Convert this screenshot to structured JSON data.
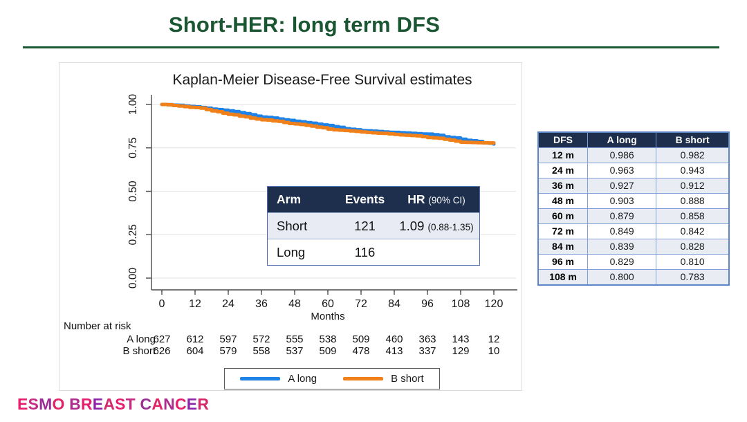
{
  "slide": {
    "title": "Short-HER: long term DFS",
    "logo_text": "ESMO BREAST CANCER",
    "accent_green": "#1a5632",
    "logo_palette": [
      "#e61e6e",
      "#c62a83",
      "#9a2e96",
      "#e02468",
      "#ad2c8e",
      "#e61e6e",
      "#8e24aa",
      "#d42a6b"
    ]
  },
  "chart_data": {
    "type": "line",
    "subtype": "kaplan-meier-step",
    "title": "Kaplan-Meier Disease-Free Survival estimates",
    "xlabel": "Months",
    "x_ticks": [
      0,
      12,
      24,
      36,
      48,
      60,
      72,
      84,
      96,
      108,
      120
    ],
    "y_tick_values": [
      0,
      0.25,
      0.5,
      0.75,
      1
    ],
    "y_tick_labels": [
      "0.00",
      "0.25",
      "0.50",
      "0.75",
      "1.00"
    ],
    "xlim": [
      0,
      120
    ],
    "ylim": [
      0,
      1
    ],
    "grid": "horizontal",
    "legend_position": "bottom",
    "series": [
      {
        "name": "A long",
        "color": "#1e82e6",
        "x": [
          0,
          12,
          24,
          36,
          48,
          60,
          72,
          84,
          96,
          108,
          120
        ],
        "values": [
          1.0,
          0.986,
          0.963,
          0.927,
          0.903,
          0.879,
          0.849,
          0.839,
          0.829,
          0.8,
          0.772
        ]
      },
      {
        "name": "B short",
        "color": "#f0801a",
        "x": [
          0,
          12,
          24,
          36,
          48,
          60,
          72,
          84,
          96,
          108,
          120
        ],
        "values": [
          1.0,
          0.982,
          0.943,
          0.912,
          0.888,
          0.858,
          0.842,
          0.828,
          0.81,
          0.783,
          0.778
        ]
      }
    ],
    "number_at_risk": {
      "title": "Number at risk",
      "rows": [
        {
          "label": "A long",
          "values": [
            627,
            612,
            597,
            572,
            555,
            538,
            509,
            460,
            363,
            143,
            12
          ]
        },
        {
          "label": "B short",
          "values": [
            626,
            604,
            579,
            558,
            537,
            509,
            478,
            413,
            337,
            129,
            10
          ]
        }
      ]
    }
  },
  "inset_table": {
    "header": {
      "arm": "Arm",
      "events": "Events",
      "hr": "HR",
      "hr_ci": "(90% CI)"
    },
    "rows": [
      {
        "arm": "Short",
        "events": "121",
        "hr": "1.09",
        "hr_ci": "(0.88-1.35)"
      },
      {
        "arm": "Long",
        "events": "116",
        "hr": "",
        "hr_ci": ""
      }
    ]
  },
  "dfs_table": {
    "headers": [
      "DFS",
      "A long",
      "B short"
    ],
    "rows": [
      [
        "12 m",
        "0.986",
        "0.982"
      ],
      [
        "24 m",
        "0.963",
        "0.943"
      ],
      [
        "36 m",
        "0.927",
        "0.912"
      ],
      [
        "48 m",
        "0.903",
        "0.888"
      ],
      [
        "60 m",
        "0.879",
        "0.858"
      ],
      [
        "72 m",
        "0.849",
        "0.842"
      ],
      [
        "84 m",
        "0.839",
        "0.828"
      ],
      [
        "96 m",
        "0.829",
        "0.810"
      ],
      [
        "108 m",
        "0.800",
        "0.783"
      ]
    ],
    "style": {
      "header_bg": "#1d2f4c",
      "row_alt_bg": "#e9ecf3",
      "border": "#7f9fd6"
    }
  }
}
